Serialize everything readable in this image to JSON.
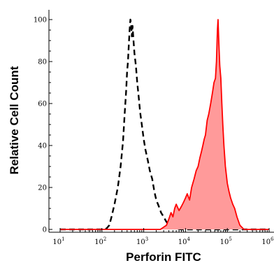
{
  "chart_data": {
    "type": "area",
    "title": "",
    "xlabel": "Perforin FITC",
    "ylabel": "Relative Cell Count",
    "xscale": "log",
    "xlim": [
      10,
      1000000
    ],
    "ylim": [
      0,
      102
    ],
    "x_ticks": [
      {
        "value": 10,
        "base": "10",
        "exp": "1"
      },
      {
        "value": 100,
        "base": "10",
        "exp": "2"
      },
      {
        "value": 1000,
        "base": "10",
        "exp": "3"
      },
      {
        "value": 10000,
        "base": "10",
        "exp": "4"
      },
      {
        "value": 100000,
        "base": "10",
        "exp": "5"
      },
      {
        "value": 1000000,
        "base": "10",
        "exp": "6"
      }
    ],
    "y_ticks": [
      "0",
      "20",
      "40",
      "60",
      "80",
      "100"
    ],
    "grid": false,
    "legend": "none",
    "series": [
      {
        "style": "dashed",
        "fill": false,
        "color": "#000000",
        "x": [
          10,
          60,
          110,
          130,
          150,
          170,
          200,
          240,
          280,
          320,
          350,
          380,
          400,
          420,
          440,
          460,
          480,
          500,
          520,
          540,
          570,
          600,
          650,
          700,
          760,
          820,
          900,
          1000,
          1100,
          1250,
          1400,
          1600,
          1800,
          2000,
          2300,
          2600,
          3000,
          3400,
          4000,
          5000,
          8000,
          30000,
          1000000
        ],
        "y": [
          0,
          0,
          0,
          0.5,
          2,
          6,
          12,
          20,
          30,
          42,
          55,
          66,
          75,
          80,
          88,
          95,
          100,
          98,
          92,
          97,
          90,
          84,
          78,
          70,
          63,
          56,
          50,
          43,
          38,
          33,
          28,
          24,
          18,
          14,
          11,
          8,
          6,
          4,
          2,
          0.5,
          0,
          0,
          0
        ]
      },
      {
        "style": "solid",
        "fill": true,
        "color": "#ff0000",
        "fill_color": "#ff9a9a",
        "x": [
          10,
          2500,
          3500,
          4000,
          4500,
          5000,
          5500,
          6000,
          7000,
          8000,
          9000,
          10000,
          11000,
          12500,
          14000,
          16000,
          18000,
          20000,
          22000,
          24000,
          26000,
          28000,
          30000,
          33000,
          36000,
          40000,
          44000,
          48000,
          52000,
          55000,
          58000,
          60000,
          63000,
          66000,
          70000,
          74000,
          78000,
          83000,
          90000,
          100000,
          110000,
          120000,
          135000,
          150000,
          170000,
          200000,
          250000,
          1000000
        ],
        "y": [
          0,
          0,
          2,
          5,
          8,
          6,
          10,
          12,
          9,
          11,
          13,
          15,
          17,
          14,
          20,
          24,
          28,
          30,
          34,
          37,
          40,
          43,
          45,
          52,
          55,
          60,
          65,
          70,
          72,
          80,
          95,
          100,
          88,
          78,
          72,
          60,
          50,
          40,
          30,
          22,
          18,
          15,
          12,
          10,
          6,
          2,
          0,
          0
        ]
      }
    ]
  }
}
